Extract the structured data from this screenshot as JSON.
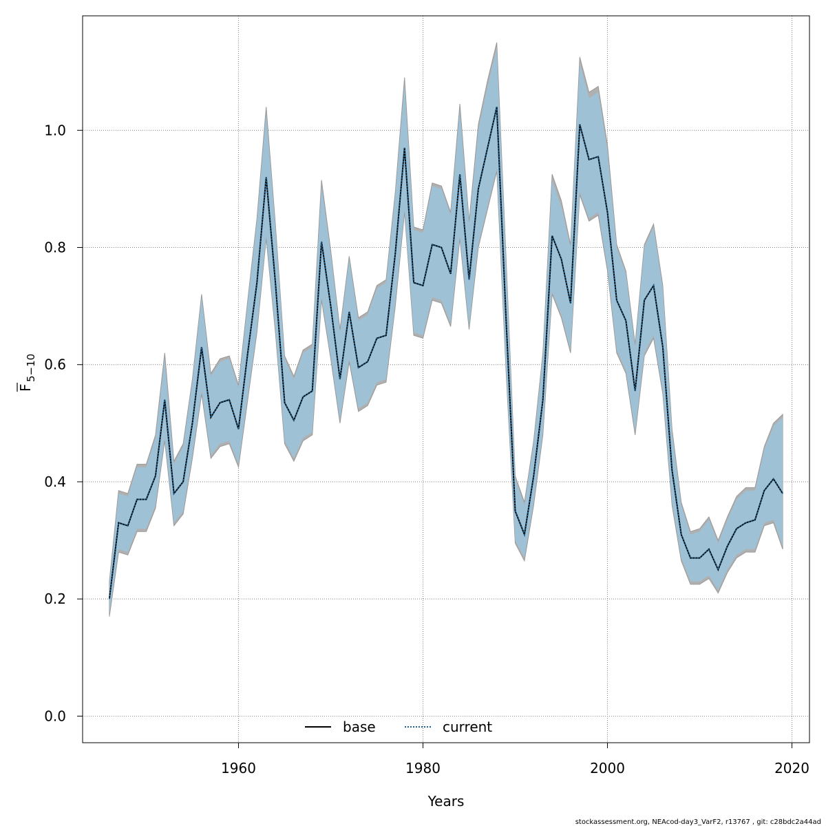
{
  "chart_data": {
    "type": "line",
    "xlabel": "Years",
    "ylabel_main": "F",
    "ylabel_sub": "5−10",
    "xlim": [
      1946,
      2019
    ],
    "ylim": [
      0.0,
      1.15
    ],
    "xticks": [
      1960,
      1980,
      2000,
      2020
    ],
    "yticks": [
      0.0,
      0.2,
      0.4,
      0.6,
      0.8,
      1.0
    ],
    "ytick_labels": [
      "0.0",
      "0.2",
      "0.4",
      "0.6",
      "0.8",
      "1.0"
    ],
    "grid": true,
    "legend_position": "bottom-center",
    "colors": {
      "band_base": "#b0b0b0",
      "band_current": "#9fc1d6",
      "line_base": "#000000",
      "line_current": "#1f5f8b",
      "grid": "#808080"
    },
    "x": [
      1946,
      1947,
      1948,
      1949,
      1950,
      1951,
      1952,
      1953,
      1954,
      1955,
      1956,
      1957,
      1958,
      1959,
      1960,
      1961,
      1962,
      1963,
      1964,
      1965,
      1966,
      1967,
      1968,
      1969,
      1970,
      1971,
      1972,
      1973,
      1974,
      1975,
      1976,
      1977,
      1978,
      1979,
      1980,
      1981,
      1982,
      1983,
      1984,
      1985,
      1986,
      1987,
      1988,
      1989,
      1990,
      1991,
      1992,
      1993,
      1994,
      1995,
      1996,
      1997,
      1998,
      1999,
      2000,
      2001,
      2002,
      2003,
      2004,
      2005,
      2006,
      2007,
      2008,
      2009,
      2010,
      2011,
      2012,
      2013,
      2014,
      2015,
      2016,
      2017,
      2018,
      2019
    ],
    "series": [
      {
        "name": "base",
        "style": "solid",
        "values": [
          0.2,
          0.33,
          0.325,
          0.37,
          0.37,
          0.41,
          0.54,
          0.38,
          0.4,
          0.5,
          0.63,
          0.51,
          0.535,
          0.54,
          0.49,
          0.62,
          0.74,
          0.92,
          0.74,
          0.535,
          0.505,
          0.545,
          0.555,
          0.81,
          0.7,
          0.575,
          0.69,
          0.595,
          0.605,
          0.645,
          0.65,
          0.79,
          0.97,
          0.74,
          0.735,
          0.805,
          0.8,
          0.755,
          0.925,
          0.745,
          0.9,
          0.97,
          1.04,
          0.68,
          0.35,
          0.31,
          0.41,
          0.54,
          0.82,
          0.78,
          0.705,
          1.01,
          0.95,
          0.955,
          0.86,
          0.71,
          0.675,
          0.555,
          0.71,
          0.735,
          0.63,
          0.42,
          0.31,
          0.27,
          0.27,
          0.285,
          0.25,
          0.29,
          0.32,
          0.33,
          0.335,
          0.385,
          0.405,
          0.38
        ],
        "lower": [
          0.17,
          0.28,
          0.275,
          0.315,
          0.315,
          0.355,
          0.47,
          0.325,
          0.345,
          0.44,
          0.55,
          0.44,
          0.46,
          0.465,
          0.425,
          0.54,
          0.655,
          0.815,
          0.655,
          0.465,
          0.435,
          0.47,
          0.48,
          0.71,
          0.61,
          0.5,
          0.605,
          0.52,
          0.53,
          0.565,
          0.57,
          0.7,
          0.86,
          0.65,
          0.645,
          0.71,
          0.705,
          0.665,
          0.815,
          0.66,
          0.8,
          0.865,
          0.93,
          0.59,
          0.295,
          0.265,
          0.36,
          0.48,
          0.72,
          0.68,
          0.62,
          0.89,
          0.845,
          0.855,
          0.76,
          0.62,
          0.585,
          0.48,
          0.615,
          0.645,
          0.55,
          0.36,
          0.265,
          0.225,
          0.225,
          0.235,
          0.21,
          0.245,
          0.27,
          0.28,
          0.28,
          0.325,
          0.33,
          0.285
        ],
        "upper": [
          0.23,
          0.385,
          0.38,
          0.43,
          0.43,
          0.48,
          0.62,
          0.435,
          0.465,
          0.575,
          0.72,
          0.585,
          0.61,
          0.615,
          0.565,
          0.71,
          0.85,
          1.04,
          0.84,
          0.615,
          0.58,
          0.625,
          0.635,
          0.915,
          0.795,
          0.66,
          0.785,
          0.68,
          0.69,
          0.735,
          0.745,
          0.895,
          1.09,
          0.835,
          0.83,
          0.91,
          0.905,
          0.86,
          1.045,
          0.845,
          1.01,
          1.085,
          1.15,
          0.785,
          0.41,
          0.365,
          0.47,
          0.62,
          0.925,
          0.88,
          0.805,
          1.125,
          1.065,
          1.075,
          0.975,
          0.805,
          0.76,
          0.635,
          0.805,
          0.84,
          0.735,
          0.49,
          0.365,
          0.315,
          0.32,
          0.34,
          0.3,
          0.34,
          0.375,
          0.39,
          0.39,
          0.46,
          0.5,
          0.515
        ]
      },
      {
        "name": "current",
        "style": "dotted",
        "values": [
          0.2,
          0.33,
          0.325,
          0.37,
          0.37,
          0.41,
          0.54,
          0.38,
          0.4,
          0.5,
          0.63,
          0.51,
          0.535,
          0.54,
          0.49,
          0.62,
          0.74,
          0.92,
          0.74,
          0.535,
          0.505,
          0.545,
          0.555,
          0.81,
          0.7,
          0.575,
          0.69,
          0.595,
          0.605,
          0.645,
          0.65,
          0.79,
          0.97,
          0.74,
          0.735,
          0.805,
          0.8,
          0.755,
          0.925,
          0.745,
          0.9,
          0.97,
          1.04,
          0.68,
          0.35,
          0.31,
          0.41,
          0.54,
          0.82,
          0.78,
          0.705,
          1.01,
          0.95,
          0.955,
          0.86,
          0.71,
          0.675,
          0.555,
          0.71,
          0.735,
          0.63,
          0.42,
          0.31,
          0.27,
          0.27,
          0.285,
          0.25,
          0.29,
          0.32,
          0.33,
          0.335,
          0.385,
          0.405,
          0.38
        ],
        "lower": [
          0.175,
          0.285,
          0.28,
          0.32,
          0.32,
          0.36,
          0.475,
          0.33,
          0.35,
          0.445,
          0.555,
          0.445,
          0.465,
          0.47,
          0.43,
          0.545,
          0.66,
          0.82,
          0.66,
          0.47,
          0.44,
          0.475,
          0.485,
          0.715,
          0.615,
          0.505,
          0.61,
          0.525,
          0.535,
          0.57,
          0.575,
          0.705,
          0.865,
          0.655,
          0.65,
          0.715,
          0.71,
          0.67,
          0.82,
          0.665,
          0.805,
          0.87,
          0.935,
          0.595,
          0.3,
          0.27,
          0.365,
          0.485,
          0.725,
          0.685,
          0.625,
          0.895,
          0.85,
          0.86,
          0.765,
          0.625,
          0.59,
          0.485,
          0.62,
          0.65,
          0.555,
          0.365,
          0.27,
          0.23,
          0.23,
          0.24,
          0.215,
          0.25,
          0.275,
          0.285,
          0.285,
          0.33,
          0.335,
          0.29
        ],
        "upper": [
          0.225,
          0.38,
          0.375,
          0.425,
          0.425,
          0.475,
          0.61,
          0.43,
          0.46,
          0.57,
          0.715,
          0.58,
          0.605,
          0.61,
          0.56,
          0.705,
          0.845,
          1.03,
          0.835,
          0.61,
          0.575,
          0.62,
          0.63,
          0.905,
          0.79,
          0.655,
          0.78,
          0.675,
          0.685,
          0.73,
          0.74,
          0.89,
          1.08,
          0.83,
          0.825,
          0.905,
          0.9,
          0.855,
          1.035,
          0.84,
          1.0,
          1.075,
          1.14,
          0.78,
          0.405,
          0.36,
          0.465,
          0.615,
          0.915,
          0.87,
          0.8,
          1.115,
          1.055,
          1.065,
          0.965,
          0.8,
          0.755,
          0.63,
          0.8,
          0.835,
          0.73,
          0.485,
          0.36,
          0.31,
          0.315,
          0.335,
          0.295,
          0.335,
          0.37,
          0.385,
          0.385,
          0.455,
          0.495,
          0.51
        ]
      }
    ]
  },
  "legend": {
    "items": [
      {
        "label": "base"
      },
      {
        "label": "current"
      }
    ]
  },
  "footer": {
    "text": "stockassessment.org, NEAcod-day3_VarF2, r13767 , git: c28bdc2a44ad"
  }
}
